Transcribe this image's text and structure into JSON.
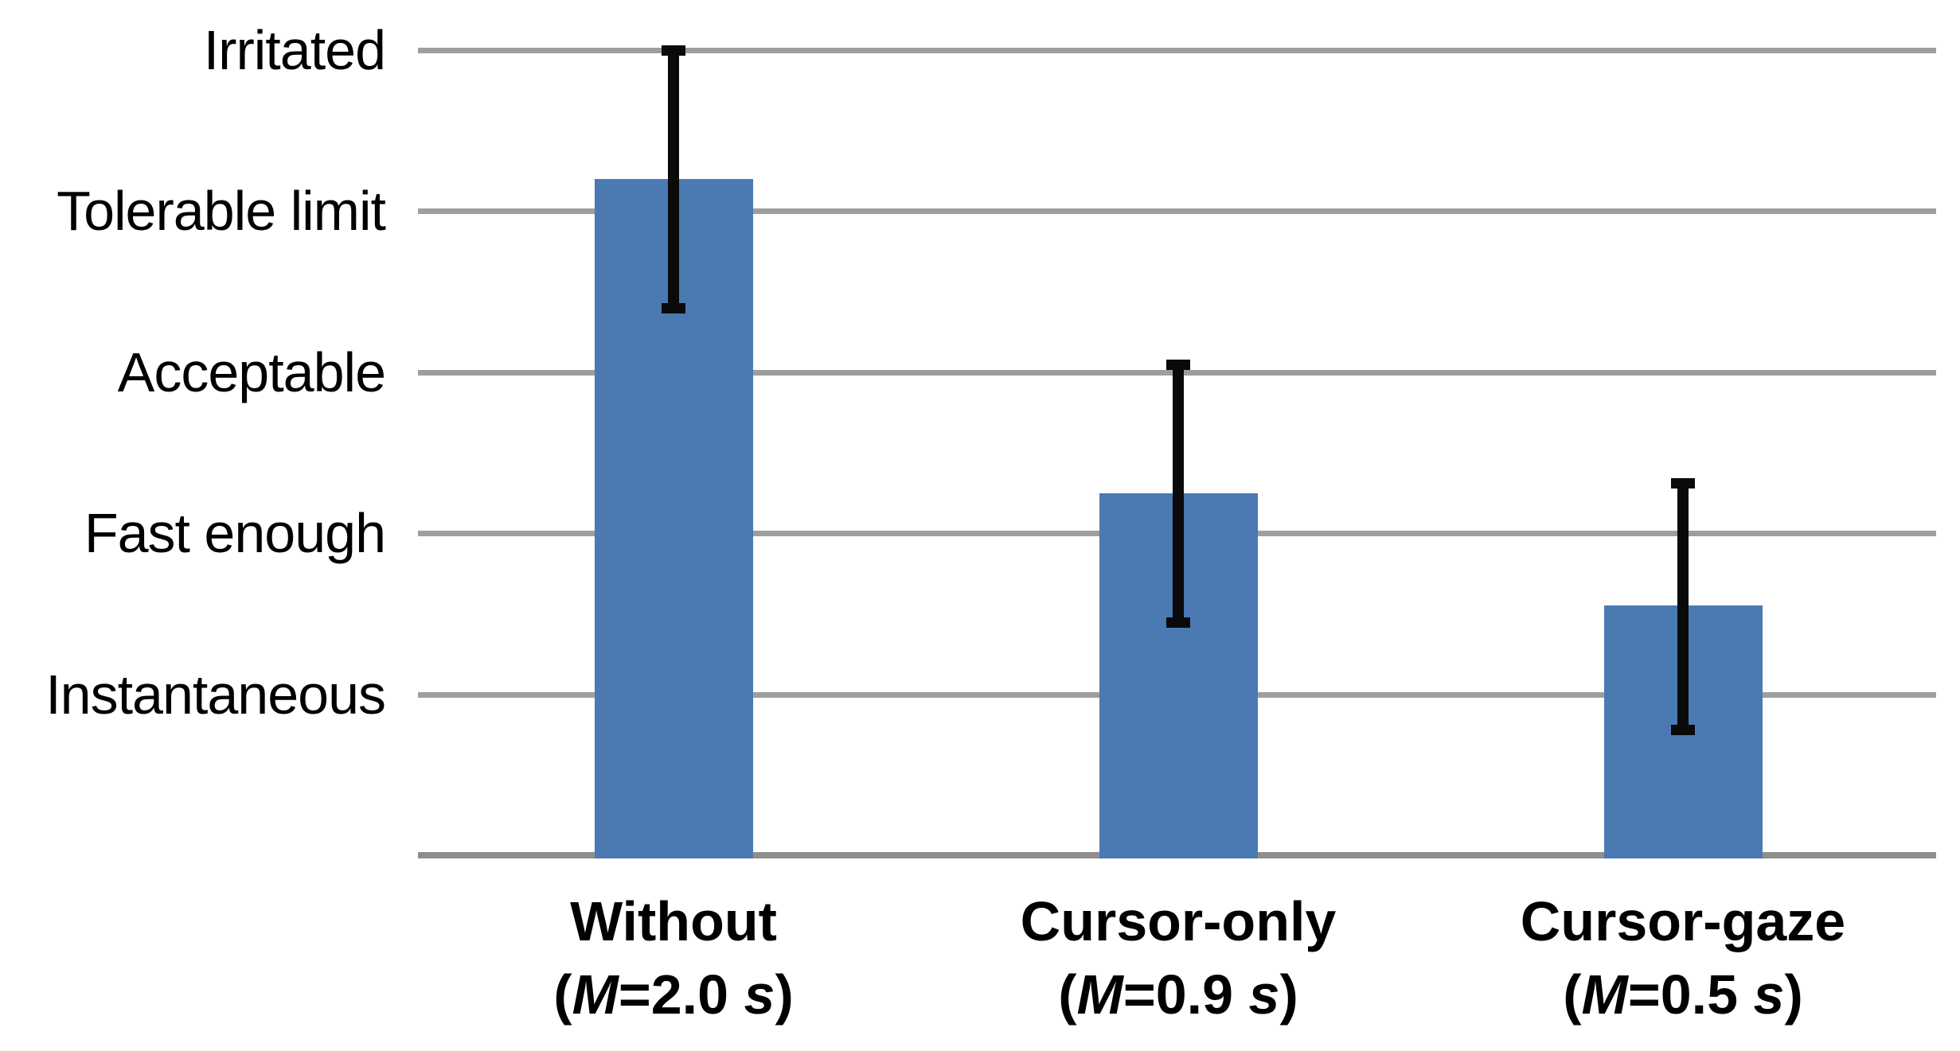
{
  "chart_data": {
    "type": "bar",
    "title": "",
    "description": "Subjective rating of system response speed for three pointing techniques, with mean response times shown under each category",
    "categories": [
      "Without",
      "Cursor-only",
      "Cursor-gaze"
    ],
    "category_sublabels": [
      "(M=2.0 s)",
      "(M=0.9 s)",
      "(M=0.5 s)"
    ],
    "mean_times_s": [
      2.0,
      0.9,
      0.5
    ],
    "category_label_parts": [
      {
        "name": "Without",
        "open": "(",
        "m": "M",
        "mid": "=2.0 ",
        "s_unit": "s",
        "close": ")"
      },
      {
        "name": "Cursor-only",
        "open": "(",
        "m": "M",
        "mid": "=0.9 ",
        "s_unit": "s",
        "close": ")"
      },
      {
        "name": "Cursor-gaze",
        "open": "(",
        "m": "M",
        "mid": "=0.5 ",
        "s_unit": "s",
        "close": ")"
      }
    ],
    "values": [
      4.2,
      2.25,
      1.55
    ],
    "error_bars": {
      "lower": [
        3.4,
        1.45,
        0.78
      ],
      "upper": [
        5.0,
        3.05,
        2.31
      ]
    },
    "yticks": [
      {
        "value": 1,
        "label": "Instantaneous"
      },
      {
        "value": 2,
        "label": "Fast enough"
      },
      {
        "value": 3,
        "label": "Acceptable"
      },
      {
        "value": 4,
        "label": "Tolerable limit"
      },
      {
        "value": 5,
        "label": "Irritated"
      }
    ],
    "ylim": [
      0,
      5.3
    ],
    "grid": true,
    "legend": false,
    "colors": {
      "bar": "#4b79b2",
      "gridline": "#9e9e9e",
      "axis_line": "#8d8d8d",
      "error_bar": "#0a0a0a",
      "text": "#000000",
      "background": "#ffffff"
    }
  }
}
